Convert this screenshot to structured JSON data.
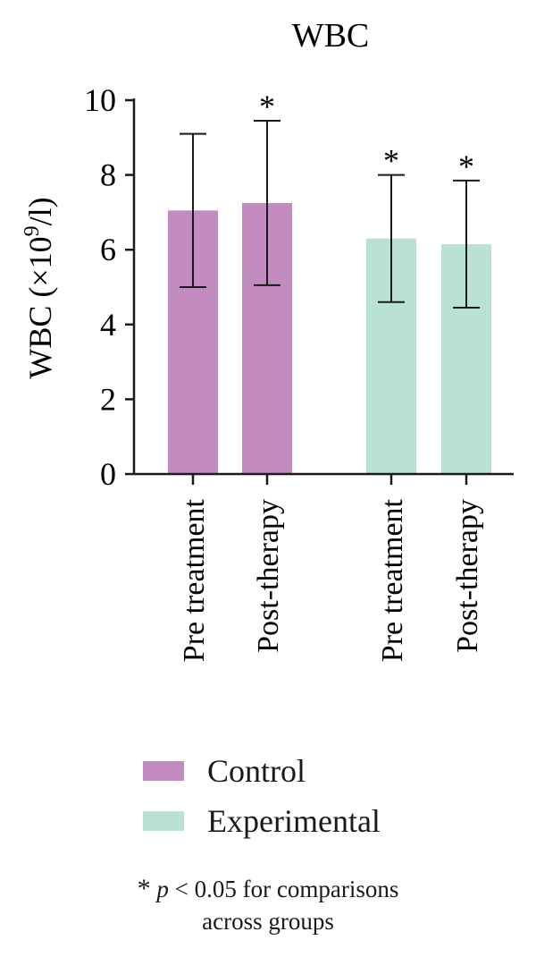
{
  "chart_data": {
    "type": "bar",
    "title": "WBC",
    "ylabel": "WBC (×10⁹/l)",
    "ylim": [
      0,
      10
    ],
    "yticks": [
      "0",
      "2",
      "4",
      "6",
      "8",
      "10"
    ],
    "categories": [
      "Pre treatment",
      "Post-therapy",
      "Pre treatment",
      "Post-therapy"
    ],
    "groups": [
      {
        "name": "Control",
        "color": "#c28cc0",
        "bars": [
          {
            "category": "Pre treatment",
            "value": 7.05,
            "error": 2.05,
            "significant": false
          },
          {
            "category": "Post-therapy",
            "value": 7.25,
            "error": 2.2,
            "significant": true
          }
        ]
      },
      {
        "name": "Experimental",
        "color": "#b9e2d2",
        "bars": [
          {
            "category": "Pre treatment",
            "value": 6.3,
            "error": 1.7,
            "significant": true
          },
          {
            "category": "Post-therapy",
            "value": 6.15,
            "error": 1.7,
            "significant": true
          }
        ]
      }
    ],
    "significance_marker": "*",
    "grid": false
  },
  "legend": {
    "items": [
      {
        "label": "Control",
        "color": "#c28cc0"
      },
      {
        "label": "Experimental",
        "color": "#b9e2d2"
      }
    ]
  },
  "note": {
    "star": "*",
    "p": "p",
    "line1_rest": " < 0.05 for comparisons",
    "line2": "across groups"
  }
}
